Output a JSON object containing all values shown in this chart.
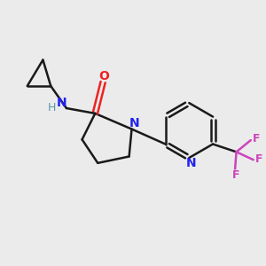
{
  "bg_color": "#ebebeb",
  "bond_color": "#1a1a1a",
  "N_color": "#2222ee",
  "O_color": "#ee2222",
  "F_color": "#cc44bb",
  "H_color": "#5599aa",
  "line_width": 1.8,
  "figsize": [
    3.0,
    3.0
  ],
  "dpi": 100,
  "xlim": [
    0,
    10
  ],
  "ylim": [
    0,
    10
  ]
}
